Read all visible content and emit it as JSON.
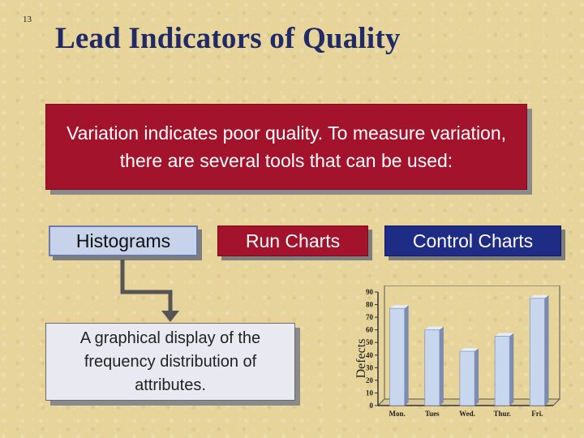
{
  "slide": {
    "number": "13",
    "title": "Lead Indicators of Quality",
    "variation_text": "Variation indicates poor quality.  To measure variation, there are several tools that can be used:",
    "buttons": {
      "histograms": "Histograms",
      "run_charts": "Run Charts",
      "control_charts": "Control Charts"
    },
    "description": "A graphical display of the frequency distribution of attributes."
  },
  "colors": {
    "red_box": "#a3132c",
    "blue_box": "#1e2c86",
    "hist_box": "#c6d3ea",
    "bar_fill": "#c9d7ee",
    "background": "#e7d49a"
  },
  "chart_data": {
    "type": "bar",
    "ylabel": "Defects",
    "categories": [
      "Mon.",
      "Tues",
      "Wed.",
      "Thur.",
      "Fri."
    ],
    "values": [
      77,
      60,
      43,
      55,
      85
    ],
    "ylim": [
      0,
      90
    ],
    "yticks": [
      0,
      10,
      20,
      30,
      40,
      50,
      60,
      70,
      80,
      90
    ],
    "grid": false
  }
}
